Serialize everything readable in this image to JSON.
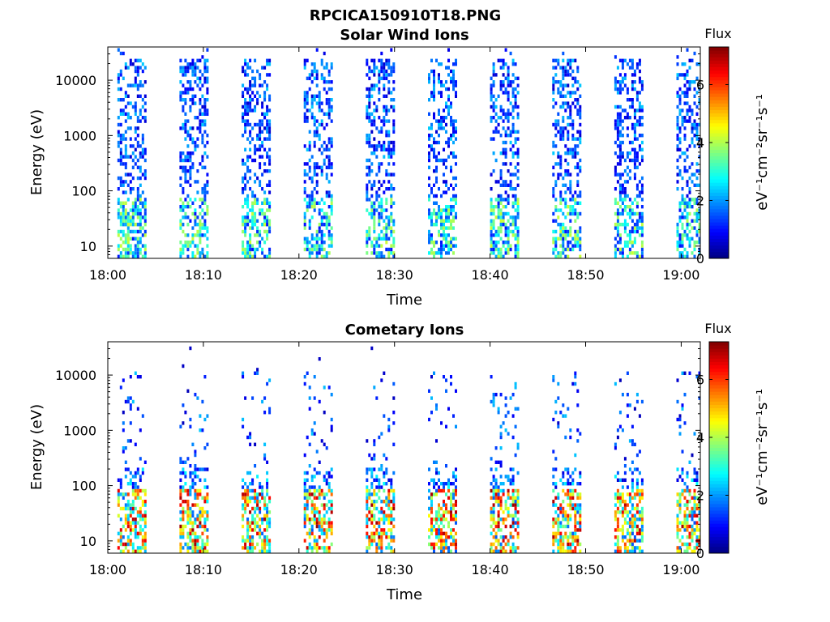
{
  "figure": {
    "suptitle": "RPCICA150910T18.PNG"
  },
  "chart_data": [
    {
      "type": "heatmap",
      "title": "Solar Wind Ions",
      "xlabel": "Time",
      "ylabel": "Energy (eV)",
      "x_ticks": [
        "18:00",
        "18:10",
        "18:20",
        "18:30",
        "18:40",
        "18:50",
        "19:00"
      ],
      "xlim_minutes": [
        0,
        62
      ],
      "y_scale": "log",
      "ylim": [
        6,
        40000
      ],
      "y_ticks": [
        10,
        100,
        1000,
        10000
      ],
      "y_tick_labels": [
        "10",
        "100",
        "1000",
        "10000"
      ],
      "colorbar": {
        "label": "Flux",
        "units": "eV⁻¹cm⁻²sr⁻¹s⁻¹",
        "range": [
          0,
          7.3
        ],
        "ticks": [
          0,
          2,
          4,
          6
        ],
        "colormap": "jet"
      },
      "scan_bursts_minutes": [
        [
          1,
          4
        ],
        [
          7.5,
          10.5
        ],
        [
          14,
          17
        ],
        [
          20.5,
          23.5
        ],
        [
          27,
          30
        ],
        [
          33.5,
          36.5
        ],
        [
          40,
          43
        ],
        [
          46.5,
          49.5
        ],
        [
          53,
          56
        ],
        [
          59.5,
          62
        ]
      ],
      "description_of_features": {
        "background_flux_range": [
          0.5,
          2.5
        ],
        "low_energy_enhancement_eV": [
          10,
          60
        ],
        "low_energy_flux_range": [
          1.5,
          4.5
        ]
      }
    },
    {
      "type": "heatmap",
      "title": "Cometary Ions",
      "xlabel": "Time",
      "ylabel": "Energy (eV)",
      "x_ticks": [
        "18:00",
        "18:10",
        "18:20",
        "18:30",
        "18:40",
        "18:50",
        "19:00"
      ],
      "xlim_minutes": [
        0,
        62
      ],
      "y_scale": "log",
      "ylim": [
        6,
        40000
      ],
      "y_ticks": [
        10,
        100,
        1000,
        10000
      ],
      "y_tick_labels": [
        "10",
        "100",
        "1000",
        "10000"
      ],
      "colorbar": {
        "label": "Flux",
        "units": "eV⁻¹cm⁻²sr⁻¹s⁻¹",
        "range": [
          0,
          7.3
        ],
        "ticks": [
          0,
          2,
          4,
          6
        ],
        "colormap": "jet"
      },
      "scan_bursts_minutes": [
        [
          1,
          4
        ],
        [
          7.5,
          10.5
        ],
        [
          14,
          17
        ],
        [
          20.5,
          23.5
        ],
        [
          27,
          30
        ],
        [
          33.5,
          36.5
        ],
        [
          40,
          43
        ],
        [
          46.5,
          49.5
        ],
        [
          53,
          56
        ],
        [
          59.5,
          62
        ]
      ],
      "description_of_features": {
        "high_flux_band_eV": [
          10,
          80
        ],
        "high_flux_peak": 7.0,
        "sparse_high_energy_flux_range": [
          0.5,
          2.5
        ]
      }
    }
  ]
}
